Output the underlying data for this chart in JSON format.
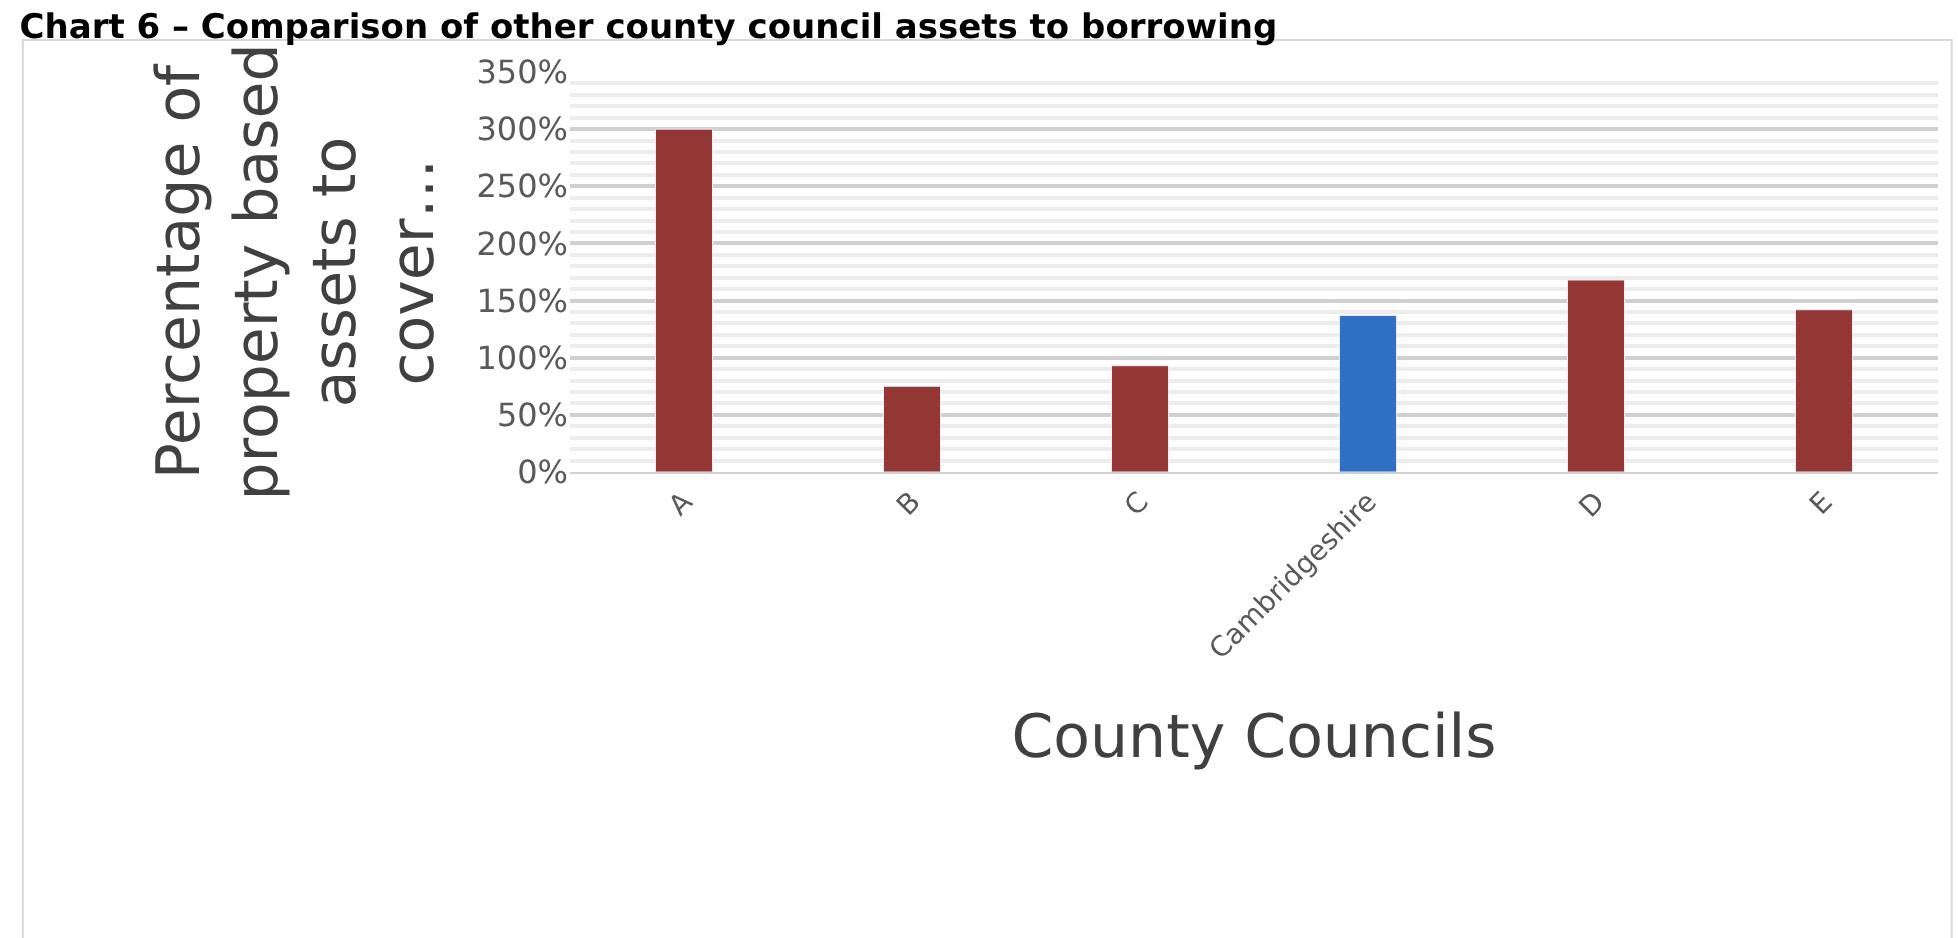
{
  "chart_data": {
    "type": "bar",
    "title": "Chart 6 – Comparison of other county council assets to borrowing",
    "xlabel": "County Councils",
    "ylabel": "Percentage of property based assets to cover…",
    "categories": [
      "A",
      "B",
      "C",
      "Cambridgeshire",
      "D",
      "E"
    ],
    "values": [
      300,
      75,
      93,
      137,
      168,
      142
    ],
    "colors": [
      "#943634",
      "#943634",
      "#943634",
      "#2e70c4",
      "#943634",
      "#943634"
    ],
    "ylim": [
      0,
      350
    ],
    "yticks": [
      {
        "value": 0,
        "label": "0%"
      },
      {
        "value": 50,
        "label": "50%"
      },
      {
        "value": 100,
        "label": "100%"
      },
      {
        "value": 150,
        "label": "150%"
      },
      {
        "value": 200,
        "label": "200%"
      },
      {
        "value": 250,
        "label": "250%"
      },
      {
        "value": 300,
        "label": "300%"
      },
      {
        "value": 350,
        "label": "350%"
      }
    ],
    "grid": "y",
    "legend": false
  }
}
